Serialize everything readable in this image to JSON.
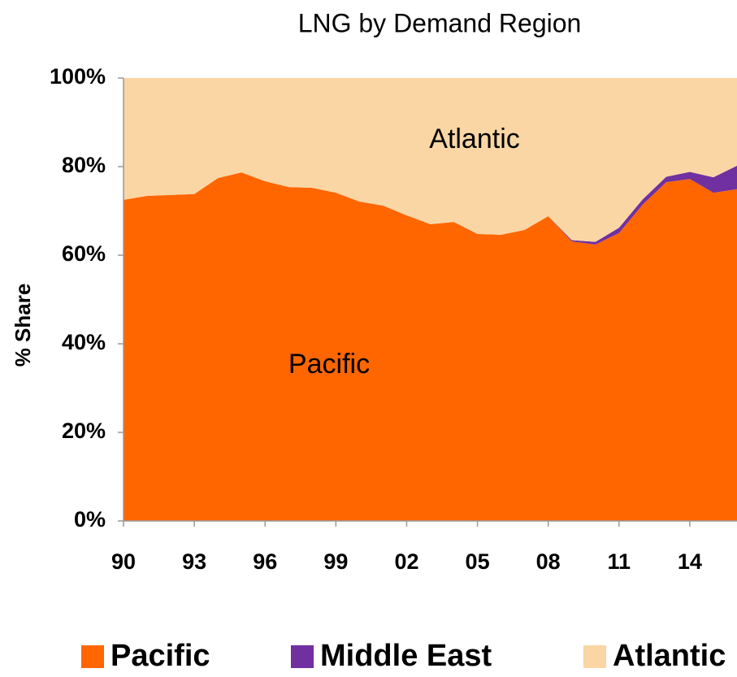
{
  "chart_data": {
    "type": "stacked_area",
    "title": "LNG by Demand Region",
    "y_label": "% Share",
    "annotations": [
      "Atlantic",
      "Pacific"
    ],
    "x": [
      1990,
      1991,
      1992,
      1993,
      1994,
      1995,
      1996,
      1997,
      1998,
      1999,
      2000,
      2001,
      2002,
      2003,
      2004,
      2005,
      2006,
      2007,
      2008,
      2009,
      2010,
      2011,
      2012,
      2013,
      2014,
      2015,
      2016
    ],
    "series": [
      {
        "name": "Pacific",
        "color": "#ff6600",
        "values": [
          72.5,
          73.4,
          73.6,
          73.8,
          77.4,
          78.7,
          76.7,
          75.4,
          75.2,
          74.1,
          72.1,
          71.2,
          69,
          67,
          67.5,
          64.8,
          64.6,
          65.7,
          68.8,
          63.1,
          62.4,
          65,
          71.4,
          76.5,
          77.2,
          74.1,
          74.9
        ]
      },
      {
        "name": "Middle East",
        "color": "#7030a0",
        "values": [
          0,
          0,
          0,
          0,
          0,
          0,
          0,
          0,
          0,
          0,
          0,
          0,
          0,
          0,
          0,
          0,
          0,
          0,
          0,
          0.3,
          0.6,
          1.2,
          1.2,
          1.2,
          1.6,
          3.5,
          5.3
        ]
      },
      {
        "name": "Atlantic",
        "color": "#fad6a5",
        "values": [
          27.5,
          26.6,
          26.4,
          26.2,
          22.6,
          21.3,
          23.3,
          24.6,
          24.8,
          25.9,
          27.9,
          28.8,
          31,
          33,
          32.5,
          35.2,
          35.4,
          34.3,
          31.2,
          36.6,
          37,
          33.8,
          27.4,
          22.3,
          21.2,
          22.4,
          19.8
        ]
      }
    ],
    "xlim": [
      1990,
      2016
    ],
    "xticks": [
      {
        "value": 1990,
        "label": "90"
      },
      {
        "value": 1993,
        "label": "93"
      },
      {
        "value": 1996,
        "label": "96"
      },
      {
        "value": 1999,
        "label": "99"
      },
      {
        "value": 2002,
        "label": "02"
      },
      {
        "value": 2005,
        "label": "05"
      },
      {
        "value": 2008,
        "label": "08"
      },
      {
        "value": 2011,
        "label": "11"
      },
      {
        "value": 2014,
        "label": "14"
      }
    ],
    "ylim": [
      0,
      100
    ],
    "yticks": [
      {
        "value": 0,
        "label": "0%"
      },
      {
        "value": 20,
        "label": "20%"
      },
      {
        "value": 40,
        "label": "40%"
      },
      {
        "value": 60,
        "label": "60%"
      },
      {
        "value": 80,
        "label": "80%"
      },
      {
        "value": 100,
        "label": "100%"
      }
    ],
    "legend": "bottom"
  }
}
